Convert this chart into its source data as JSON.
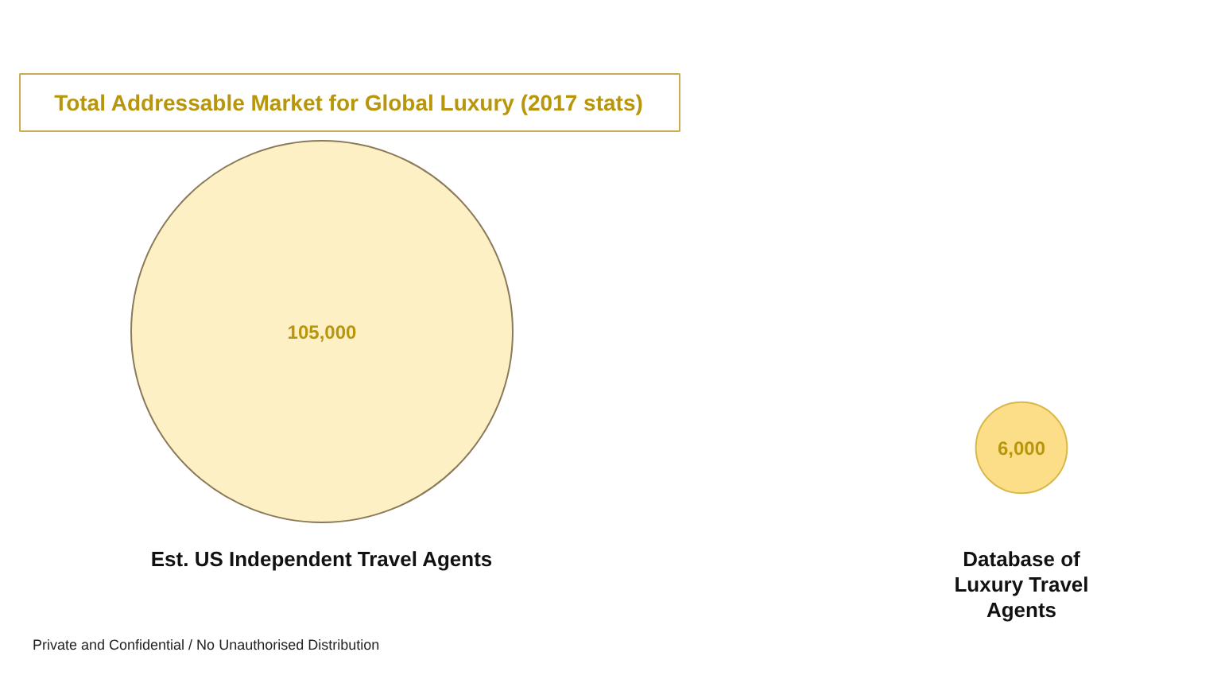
{
  "chart_data": {
    "type": "other",
    "title": "Total Addressable Market for Global Luxury (2017 stats)",
    "categories": [
      "Est. US Independent Travel Agents",
      "Database of Luxury Travel Agents"
    ],
    "values": [
      105000,
      6000
    ],
    "colors": [
      "#fdf0c4",
      "#fcdd88"
    ],
    "value_labels": [
      "105,000",
      "6,000"
    ],
    "annotations": [
      "Private and Confidential / No Unauthorised Distribution"
    ]
  }
}
